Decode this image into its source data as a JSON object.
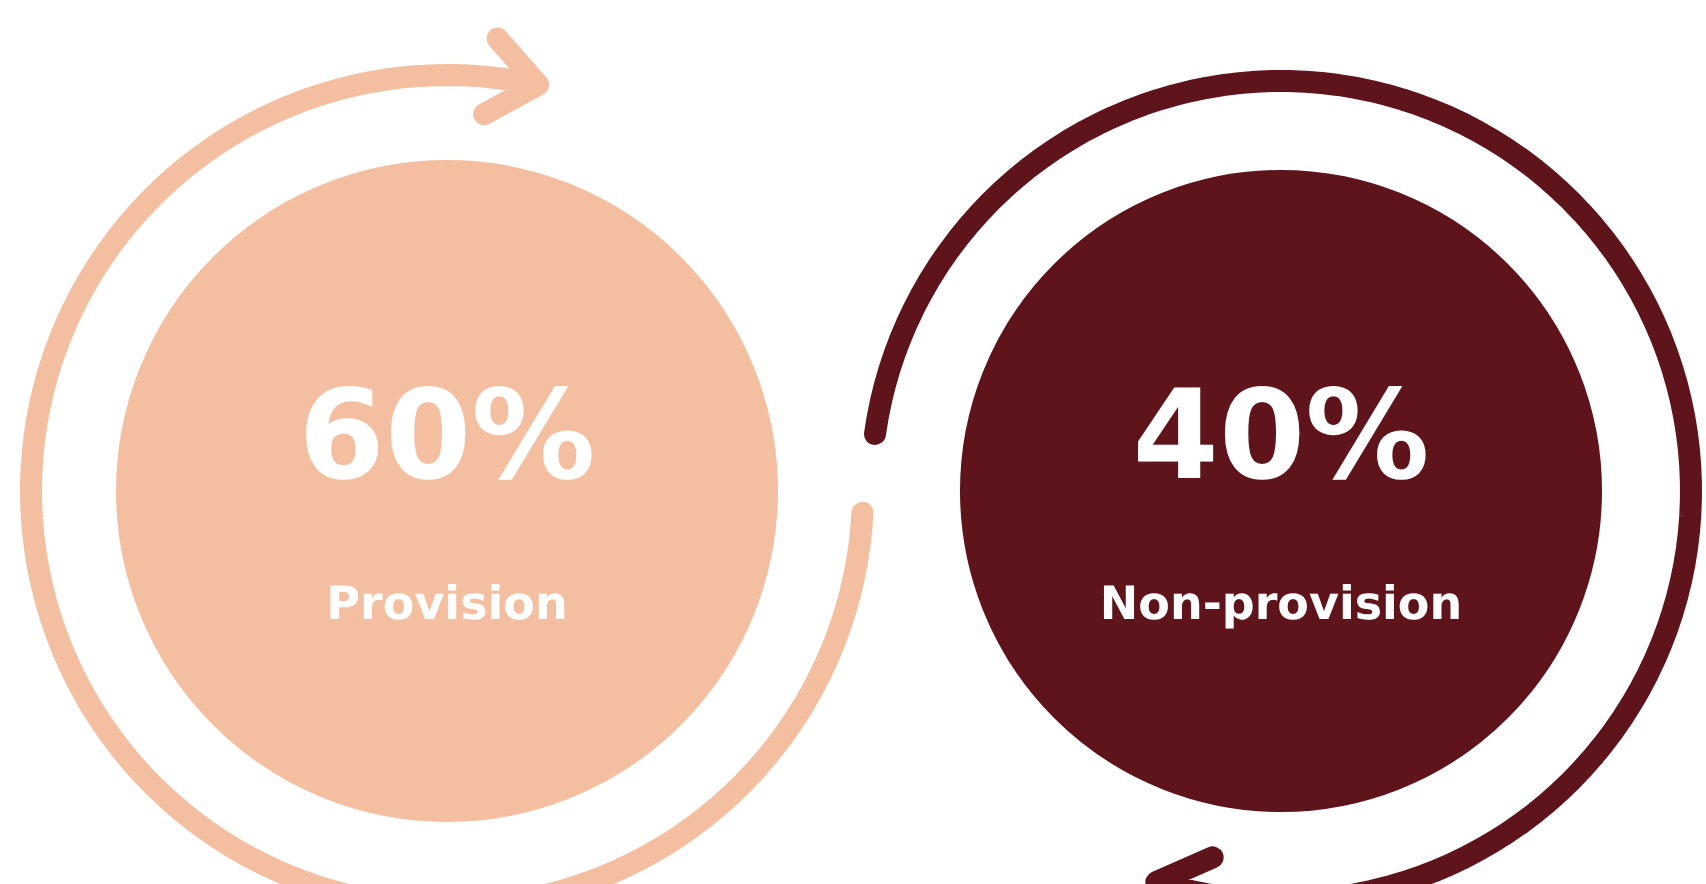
{
  "chart_data": {
    "type": "other",
    "categories": [
      "Provision",
      "Non-provision"
    ],
    "values": [
      60,
      40
    ],
    "value_labels": [
      "60%",
      "40%"
    ],
    "colors": [
      "#f4bfa0",
      "#5e141a"
    ]
  }
}
